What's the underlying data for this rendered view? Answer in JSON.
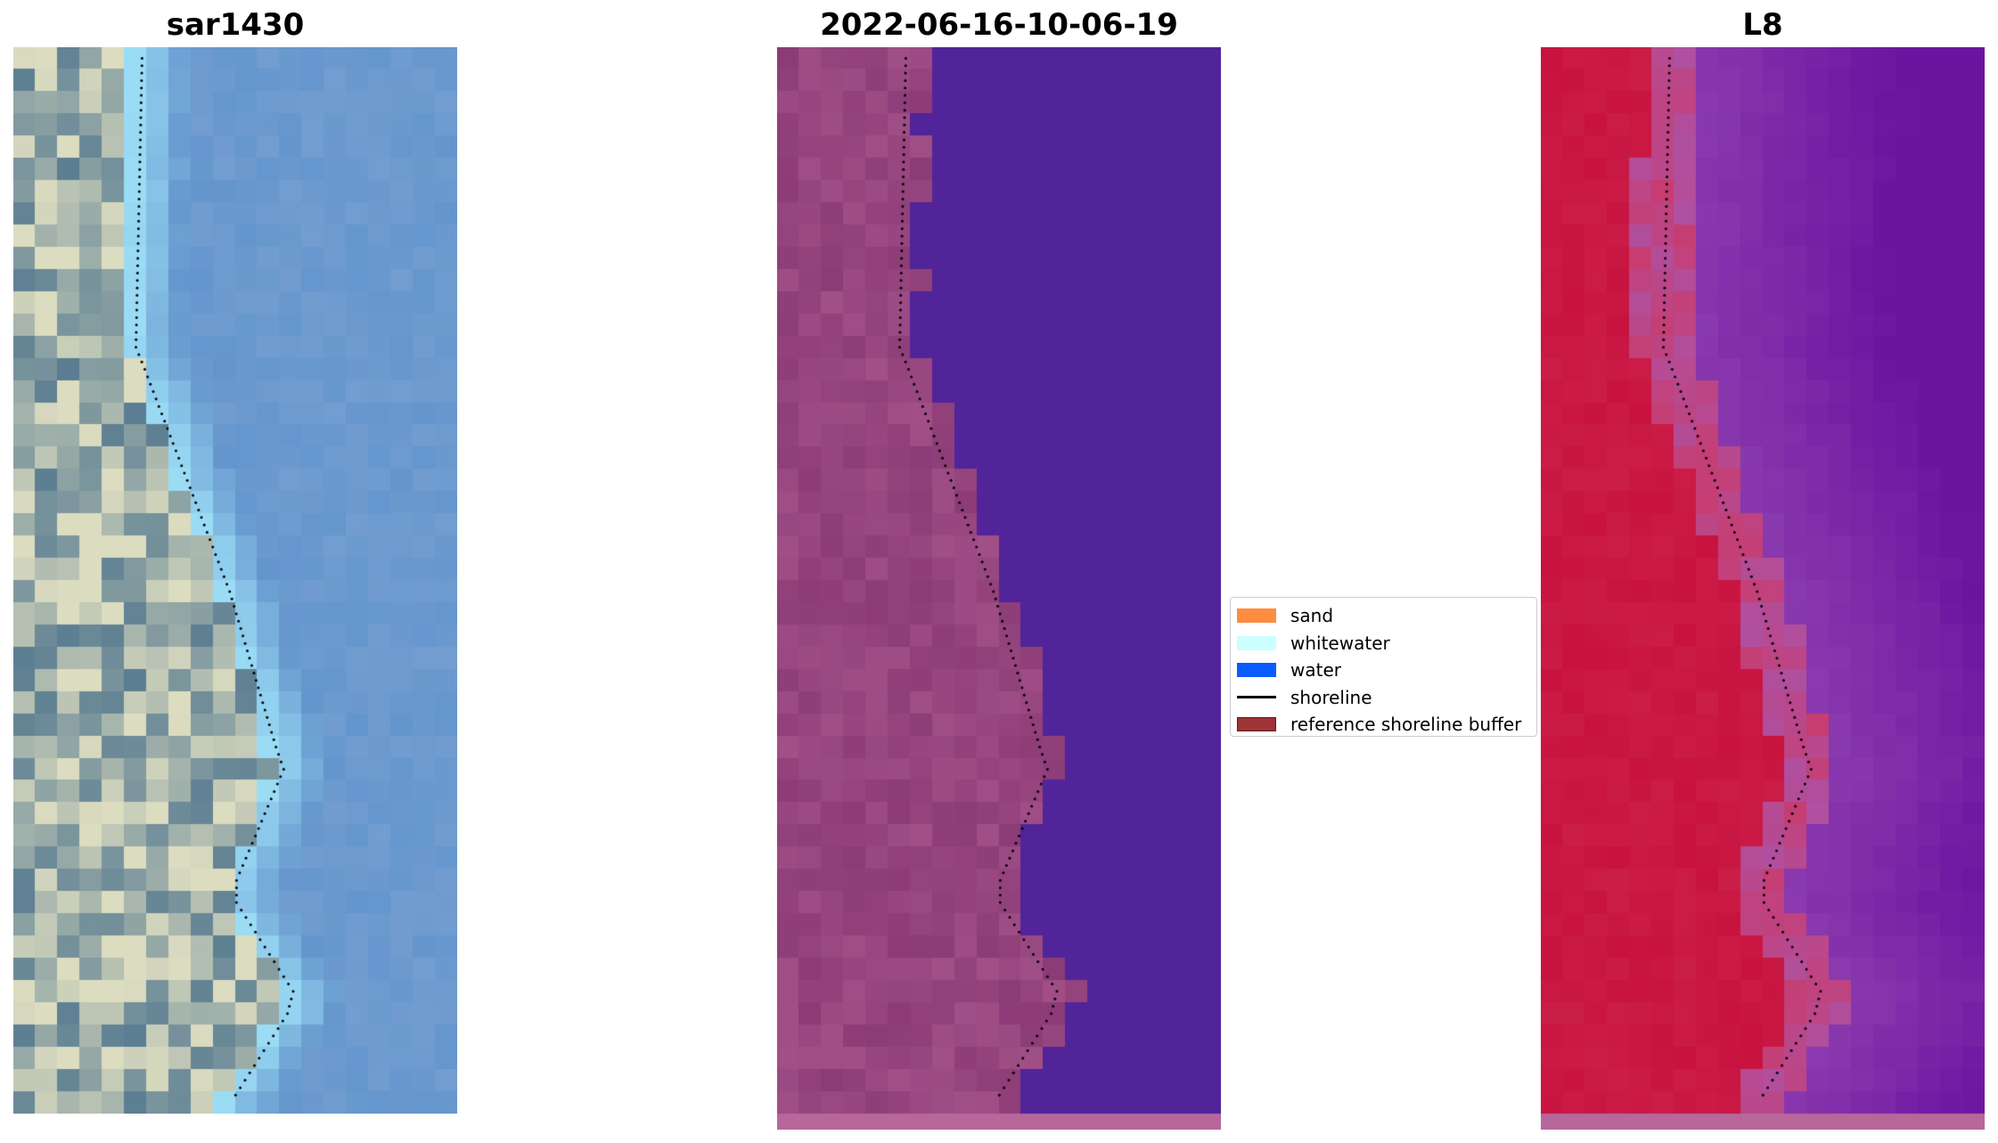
{
  "panels": [
    {
      "title": "sar1430"
    },
    {
      "title": "2022-06-16-10-06-19"
    },
    {
      "title": "L8"
    }
  ],
  "legend": {
    "items": [
      {
        "label": "sand",
        "color": "#ff8c3f",
        "kind": "patch"
      },
      {
        "label": "whitewater",
        "color": "#ccffff",
        "kind": "patch"
      },
      {
        "label": "water",
        "color": "#0a5cff",
        "kind": "patch"
      },
      {
        "label": "shoreline",
        "color": "#000000",
        "kind": "line"
      },
      {
        "label": "reference shoreline buffer",
        "color": "#9e3436",
        "kind": "patch"
      }
    ]
  },
  "colors": {
    "rgb_sand_light": "#dcdcc0",
    "rgb_land_dark": "#5a7d91",
    "rgb_surf": "#9bdcf5",
    "rgb_water": "#6496cd",
    "class_land": "#a04f87",
    "class_water": "#51249a",
    "class_strip": "#b7679a",
    "l8_land": "#c8123f",
    "l8_water": "#6a14a0",
    "shoreline_dots": "#000000"
  }
}
